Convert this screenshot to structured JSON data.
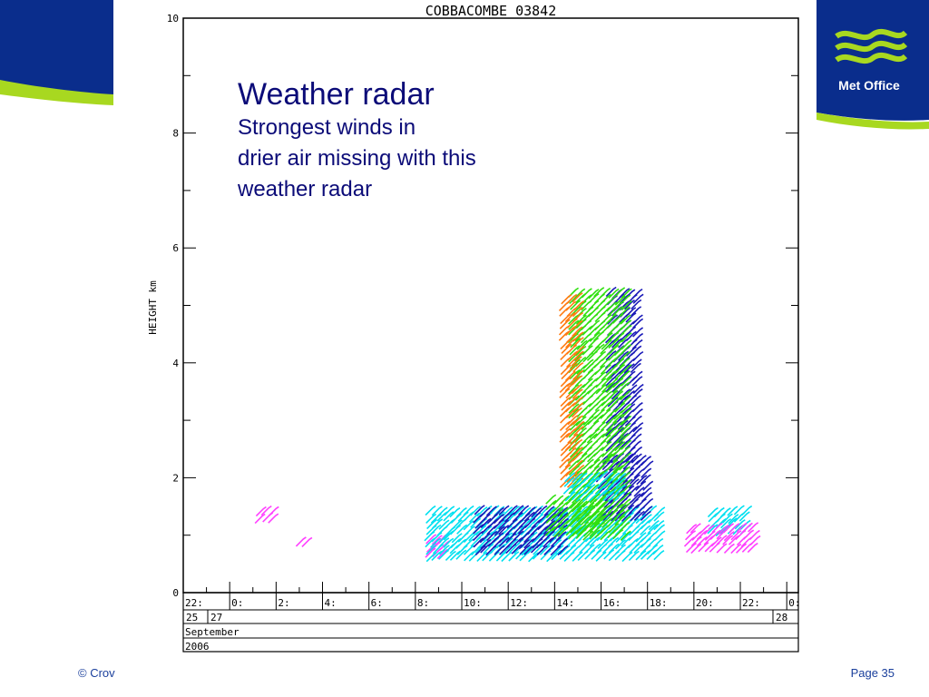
{
  "slide": {
    "heading": "Weather radar",
    "subheading_lines": [
      "Strongest winds in",
      "drier air missing with this",
      "weather radar"
    ],
    "footer_left": "© Crov",
    "footer_right": "Page 35",
    "logo_text": "Met Office",
    "brand_colors": {
      "navy": "#0a2d8c",
      "lime": "#a8d820",
      "title": "#0b0b78"
    }
  },
  "chart_data": {
    "type": "scatter",
    "title": "COBBACOMBE 03842",
    "ylabel": "HEIGHT km",
    "ylim": [
      0,
      10
    ],
    "y_ticks": [
      "0",
      "2",
      "4",
      "6",
      "8",
      "10"
    ],
    "x_time_labels": [
      "22:",
      "0:",
      "2:",
      "4:",
      "6:",
      "8:",
      "10:",
      "12:",
      "14:",
      "16:",
      "18:",
      "20:",
      "22:",
      "0:"
    ],
    "x_date_labels": [
      "25",
      "27",
      "28"
    ],
    "month_label": "September",
    "year_label": "2006",
    "xlim_hours": [
      -2,
      24.5
    ],
    "wind_colors": {
      "weak": "#ff40ff",
      "light": "#00e0f0",
      "moderate": "#1a1ab8",
      "strong": "#30e010",
      "very_strong": "#ff7a10"
    },
    "wind_barb_blocks": [
      {
        "color": "weak",
        "t_start": 1.3,
        "t_end": 2.0,
        "h_start": 1.2,
        "h_end": 1.4
      },
      {
        "color": "weak",
        "t_start": 3.0,
        "t_end": 3.5,
        "h_start": 0.85,
        "h_end": 0.85
      },
      {
        "color": "weak",
        "t_start": 8.6,
        "t_end": 9.3,
        "h_start": 0.6,
        "h_end": 0.9
      },
      {
        "color": "light",
        "t_start": 8.6,
        "t_end": 18.5,
        "h_start": 0.6,
        "h_end": 1.4
      },
      {
        "color": "moderate",
        "t_start": 10.7,
        "t_end": 14.3,
        "h_start": 0.7,
        "h_end": 1.4
      },
      {
        "color": "moderate",
        "t_start": 16.0,
        "t_end": 18.0,
        "h_start": 1.2,
        "h_end": 2.3
      },
      {
        "color": "moderate",
        "t_start": 16.4,
        "t_end": 17.7,
        "h_start": 2.3,
        "h_end": 5.2
      },
      {
        "color": "strong",
        "t_start": 14.8,
        "t_end": 17.0,
        "h_start": 0.9,
        "h_end": 5.2
      },
      {
        "color": "strong",
        "t_start": 13.8,
        "t_end": 16.0,
        "h_start": 1.0,
        "h_end": 1.6
      },
      {
        "color": "very_strong",
        "t_start": 14.4,
        "t_end": 15.2,
        "h_start": 1.8,
        "h_end": 5.1
      },
      {
        "color": "light",
        "t_start": 14.6,
        "t_end": 17.0,
        "h_start": 1.6,
        "h_end": 2.0
      },
      {
        "color": "light",
        "t_start": 20.8,
        "t_end": 22.4,
        "h_start": 1.0,
        "h_end": 1.4
      },
      {
        "color": "weak",
        "t_start": 19.8,
        "t_end": 22.6,
        "h_start": 0.7,
        "h_end": 1.1
      }
    ]
  }
}
